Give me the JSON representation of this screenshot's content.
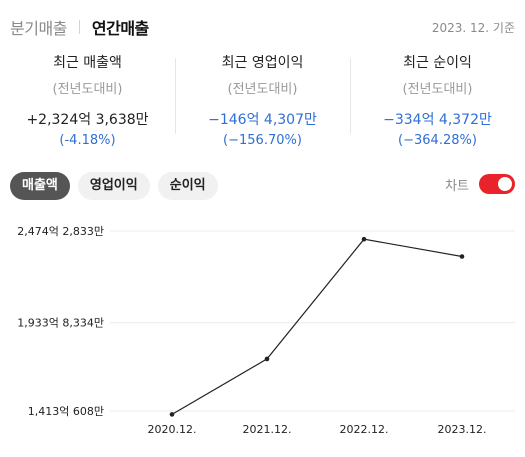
{
  "tabs": {
    "quarterly": "분기매출",
    "annual": "연간매출"
  },
  "as_of": "2023. 12. 기준",
  "stats": [
    {
      "label": "최근 매출액",
      "sub": "(전년도대비)",
      "value": "+2,324억 3,638만",
      "change": "(-4.18%)",
      "value_color": "#222222",
      "change_color": "#2f6fd6"
    },
    {
      "label": "최근 영업이익",
      "sub": "(전년도대비)",
      "value": "−146억 4,307만",
      "change": "(−156.70%)",
      "value_color": "#2f6fd6",
      "change_color": "#2f6fd6"
    },
    {
      "label": "최근 순이익",
      "sub": "(전년도대비)",
      "value": "−334억 4,372만",
      "change": "(−364.28%)",
      "value_color": "#2f6fd6",
      "change_color": "#2f6fd6"
    }
  ],
  "chips": {
    "revenue": "매출액",
    "operating_income": "영업이익",
    "net_income": "순이익"
  },
  "toggle": {
    "label": "차트",
    "on": true
  },
  "chart_data": {
    "type": "line",
    "categories": [
      "2020.12.",
      "2021.12.",
      "2022.12.",
      "2023.12."
    ],
    "values": [
      1393,
      1720,
      2426,
      2324
    ],
    "y_ticks": [
      {
        "value": 1413.0608,
        "label": "1,413억 608만"
      },
      {
        "value": 1933.8334,
        "label": "1,933억 8,334만"
      },
      {
        "value": 2474.2833,
        "label": "2,474억 2,833만"
      }
    ],
    "ylim": [
      1413.0608,
      2474.2833
    ],
    "unit": "억",
    "grid": true,
    "line_color": "#222222"
  }
}
